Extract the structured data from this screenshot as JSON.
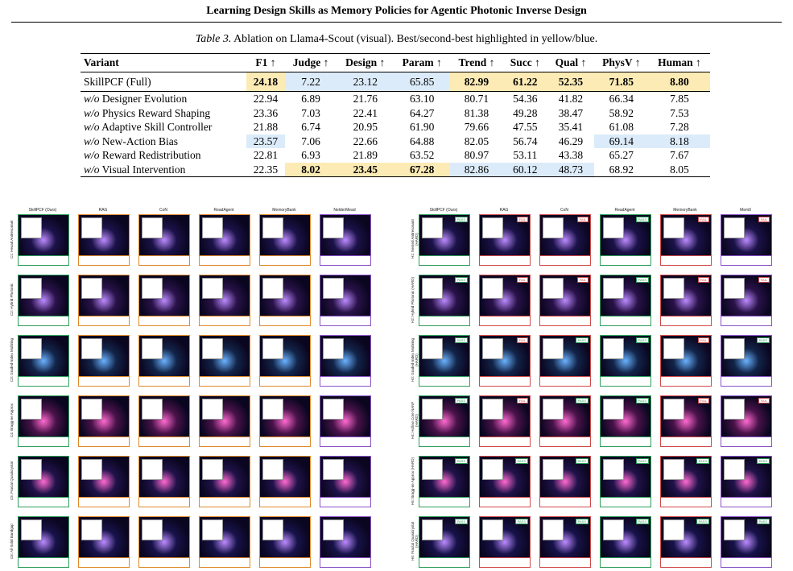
{
  "header": {
    "title": "Learning Design Skills as Memory Policies for Agentic Photonic Inverse Design"
  },
  "table": {
    "label": "Table 3.",
    "caption": "Ablation on Llama4-Scout (visual). Best/second-best highlighted in yellow/blue.",
    "columns": [
      "Variant",
      "F1 ↑",
      "Judge ↑",
      "Design ↑",
      "Param ↑",
      "Trend ↑",
      "Succ ↑",
      "Qual ↑",
      "PhysV ↑",
      "Human ↑"
    ],
    "rows": [
      {
        "prefix": "",
        "name": "SkillPCF (Full)",
        "values": [
          "24.18",
          "7.22",
          "23.12",
          "65.85",
          "82.99",
          "61.22",
          "52.35",
          "71.85",
          "8.80"
        ],
        "marks": [
          "y",
          "b",
          "b",
          "b",
          "y",
          "y",
          "y",
          "y",
          "y"
        ]
      },
      {
        "prefix": "w/o",
        "name": " Designer Evolution",
        "values": [
          "22.94",
          "6.89",
          "21.76",
          "63.10",
          "80.71",
          "54.36",
          "41.82",
          "66.34",
          "7.85"
        ],
        "marks": [
          "",
          "",
          "",
          "",
          "",
          "",
          "",
          "",
          ""
        ]
      },
      {
        "prefix": "w/o",
        "name": " Physics Reward Shaping",
        "values": [
          "23.36",
          "7.03",
          "22.41",
          "64.27",
          "81.38",
          "49.28",
          "38.47",
          "58.92",
          "7.53"
        ],
        "marks": [
          "",
          "",
          "",
          "",
          "",
          "",
          "",
          "",
          ""
        ]
      },
      {
        "prefix": "w/o",
        "name": " Adaptive Skill Controller",
        "values": [
          "21.88",
          "6.74",
          "20.95",
          "61.90",
          "79.66",
          "47.55",
          "35.41",
          "61.08",
          "7.28"
        ],
        "marks": [
          "",
          "",
          "",
          "",
          "",
          "",
          "",
          "",
          ""
        ]
      },
      {
        "prefix": "w/o",
        "name": " New-Action Bias",
        "values": [
          "23.57",
          "7.06",
          "22.66",
          "64.88",
          "82.05",
          "56.74",
          "46.29",
          "69.14",
          "8.18"
        ],
        "marks": [
          "b",
          "",
          "",
          "",
          "",
          "",
          "",
          "b",
          "b"
        ]
      },
      {
        "prefix": "w/o",
        "name": " Reward Redistribution",
        "values": [
          "22.81",
          "6.93",
          "21.89",
          "63.52",
          "80.97",
          "53.11",
          "43.38",
          "65.27",
          "7.67"
        ],
        "marks": [
          "",
          "",
          "",
          "",
          "",
          "",
          "",
          "",
          ""
        ]
      },
      {
        "prefix": "w/o",
        "name": " Visual Intervention",
        "values": [
          "22.35",
          "8.02",
          "23.45",
          "67.28",
          "82.86",
          "60.12",
          "48.73",
          "68.92",
          "8.05"
        ],
        "marks": [
          "",
          "y",
          "y",
          "y",
          "b",
          "b",
          "b",
          "",
          ""
        ]
      }
    ]
  },
  "figure_left": {
    "columns": [
      "SkillPCF (Ours)",
      "RAG",
      "CoN",
      "ReadAgent",
      "MemoryBank",
      "NelderMead"
    ],
    "rows": [
      "C1: Hexad Antiresonant",
      "C2: Hybrid Photonic",
      "C3: Graded-Index Multiring",
      "C4: Bragg-ne Approx",
      "C5: Fractal Quasicrystal",
      "C6: All-Solid Bandgap"
    ],
    "border_colors": [
      "#2e9e5b",
      "#e0892a",
      "#e0892a",
      "#e0892a",
      "#e0892a",
      "#8a52c7"
    ]
  },
  "figure_right": {
    "columns": [
      "SkillPCF (Ours)",
      "RAG",
      "CoN",
      "ReadAgent",
      "MemoryBank",
      "Mem0"
    ],
    "rows": [
      "H1: Nested Antiresonant (HARD)",
      "H2: Hybrid Photonic (HARD)",
      "H3: Graded-Index Multiring (HARD)",
      "H4: Hollow Core NANF (HARD)",
      "H5: Bragg-ne Approx (HARD)",
      "H6: Fractal Quasicrystal (HARD)"
    ],
    "border_colors": [
      "#2e9e5b",
      "#d04a4a",
      "#d04a4a",
      "#2e9e5b",
      "#d04a4a",
      "#8a52c7"
    ],
    "status": [
      [
        "PASS",
        "FAIL",
        "FAIL",
        "PASS",
        "FAIL",
        "FAIL"
      ],
      [
        "PASS",
        "FAIL",
        "FAIL",
        "PASS",
        "FAIL",
        "FAIL"
      ],
      [
        "PASS",
        "FAIL",
        "PASS",
        "PASS",
        "FAIL",
        "PASS"
      ],
      [
        "PASS",
        "FAIL",
        "PASS",
        "PASS",
        "FAIL",
        "FAIL"
      ],
      [
        "PASS",
        "PASS",
        "PASS",
        "PASS",
        "PASS",
        "PASS"
      ],
      [
        "PASS",
        "PASS",
        "PASS",
        "PASS",
        "PASS",
        "PASS"
      ]
    ]
  }
}
